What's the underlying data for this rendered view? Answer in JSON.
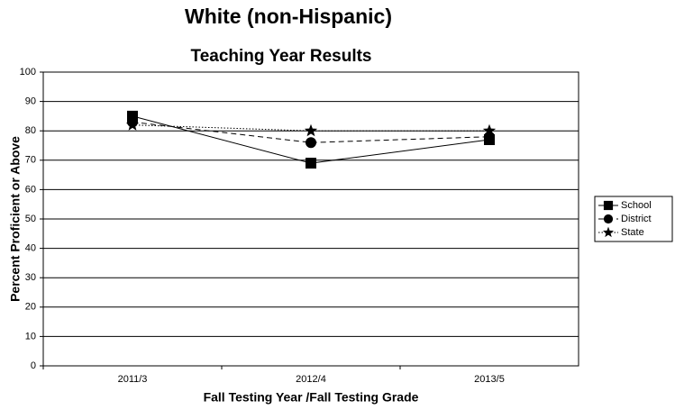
{
  "chart_data": {
    "type": "line",
    "title": "White (non-Hispanic)",
    "subtitle": "Teaching Year Results",
    "x_label": "Fall Testing Year /Fall Testing Grade",
    "y_label": "Percent Proficient or Above",
    "categories": [
      "2011/3",
      "2012/4",
      "2013/5"
    ],
    "series": [
      {
        "name": "School",
        "color": "#000000",
        "marker": "square",
        "dash": "solid",
        "values": [
          85,
          69,
          77
        ]
      },
      {
        "name": "District",
        "color": "#000000",
        "marker": "circle",
        "dash": "dashed",
        "values": [
          83,
          76,
          78
        ]
      },
      {
        "name": "State",
        "color": "#000000",
        "marker": "star",
        "dash": "dotted",
        "values": [
          82,
          80,
          80
        ]
      }
    ],
    "ylim": [
      0,
      100
    ],
    "yticks": [
      0,
      10,
      20,
      30,
      40,
      50,
      60,
      70,
      80,
      90,
      100
    ],
    "grid": true,
    "legend": "right"
  }
}
